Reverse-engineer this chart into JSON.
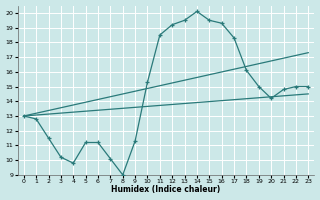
{
  "xlabel": "Humidex (Indice chaleur)",
  "xlim": [
    -0.5,
    23.5
  ],
  "ylim": [
    9,
    20.5
  ],
  "yticks": [
    9,
    10,
    11,
    12,
    13,
    14,
    15,
    16,
    17,
    18,
    19,
    20
  ],
  "xticks": [
    0,
    1,
    2,
    3,
    4,
    5,
    6,
    7,
    8,
    9,
    10,
    11,
    12,
    13,
    14,
    15,
    16,
    17,
    18,
    19,
    20,
    21,
    22,
    23
  ],
  "bg_color": "#cce8e8",
  "grid_color": "#b0d0d0",
  "line_color": "#2a7a7a",
  "line1_x": [
    0,
    1,
    2,
    3,
    4,
    5,
    6,
    7,
    8,
    9,
    10,
    11,
    12,
    13,
    14,
    15,
    16,
    17,
    18,
    19,
    20,
    21,
    22,
    23
  ],
  "line1_y": [
    13.0,
    12.8,
    11.5,
    10.2,
    9.8,
    11.2,
    11.2,
    10.1,
    9.0,
    11.3,
    15.3,
    18.5,
    19.2,
    19.5,
    20.1,
    19.5,
    19.3,
    18.3,
    16.1,
    15.0,
    14.2,
    14.8,
    15.0,
    15.0
  ],
  "line2_x": [
    0,
    23
  ],
  "line2_y": [
    13.0,
    17.3
  ],
  "line3_x": [
    0,
    23
  ],
  "line3_y": [
    13.0,
    14.5
  ]
}
